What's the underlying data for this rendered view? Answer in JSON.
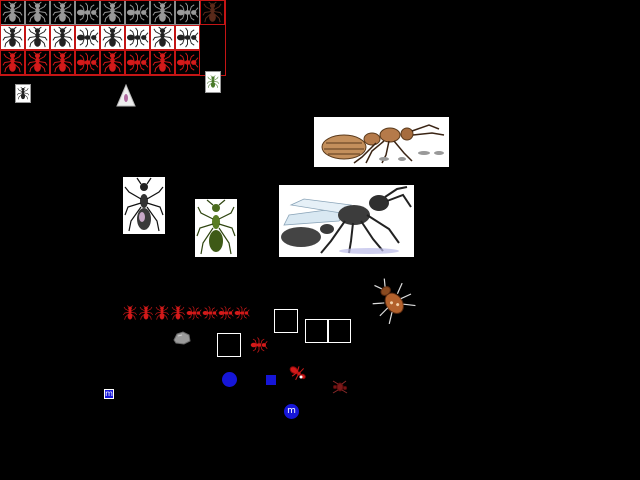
{
  "game": {
    "sprite_sheet": {
      "rows": [
        {
          "name": "dark-ants-row",
          "count": 9
        },
        {
          "name": "white-ants-row",
          "count": 8
        },
        {
          "name": "red-ants-row",
          "count": 8
        }
      ]
    },
    "markers": {
      "square_marker_label": "m",
      "round_marker_label": "m"
    },
    "colors": {
      "background": "#000000",
      "ant_red": "#d41a1a",
      "marker_blue": "#1616d8",
      "grid_red_border": "#c41515",
      "grid_dark_border": "#8a8a8a"
    },
    "icons": [
      "ant-icon",
      "spider-ant-icon",
      "red-ant-icon",
      "beetle-icon",
      "rock-icon",
      "food-crumb-icon",
      "nest-mound-icon"
    ]
  }
}
